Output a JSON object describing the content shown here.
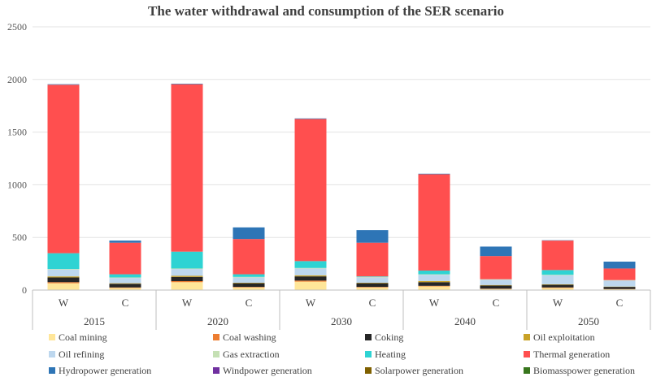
{
  "chart_data": {
    "type": "bar",
    "stacked": true,
    "title": "The water withdrawal and consumption of the SER scenario",
    "xlabel": "",
    "ylabel": "",
    "ylim": [
      0,
      2500
    ],
    "yticks": [
      0,
      500,
      1000,
      1500,
      2000,
      2500
    ],
    "grid": true,
    "legend_position": "bottom",
    "groups": [
      "2015",
      "2020",
      "2030",
      "2040",
      "2050"
    ],
    "categories": [
      "W",
      "C",
      "W",
      "C",
      "W",
      "C",
      "W",
      "C",
      "W",
      "C"
    ],
    "series": [
      {
        "name": "Coal mining",
        "color": "#FFE699",
        "values": [
          65,
          20,
          75,
          25,
          80,
          25,
          35,
          10,
          20,
          8
        ]
      },
      {
        "name": "Coal washing",
        "color": "#ED7D31",
        "values": [
          10,
          5,
          10,
          5,
          10,
          5,
          5,
          3,
          5,
          2
        ]
      },
      {
        "name": "Coking",
        "color": "#262626",
        "values": [
          45,
          35,
          40,
          35,
          40,
          35,
          35,
          30,
          25,
          20
        ]
      },
      {
        "name": "Oil exploitation",
        "color": "#C9A227",
        "values": [
          10,
          5,
          10,
          5,
          10,
          5,
          10,
          5,
          5,
          3
        ]
      },
      {
        "name": "Oil refining",
        "color": "#BDD7EE",
        "values": [
          65,
          50,
          65,
          50,
          65,
          50,
          60,
          50,
          85,
          57
        ]
      },
      {
        "name": "Gas extraction",
        "color": "#C5E0B4",
        "values": [
          5,
          5,
          5,
          5,
          5,
          5,
          5,
          5,
          5,
          5
        ]
      },
      {
        "name": "Heating",
        "color": "#2ED3D3",
        "values": [
          150,
          30,
          160,
          25,
          65,
          5,
          35,
          0,
          45,
          0
        ]
      },
      {
        "name": "Thermal generation",
        "color": "#FF4F4F",
        "values": [
          1600,
          300,
          1590,
          335,
          1350,
          320,
          915,
          220,
          280,
          110
        ]
      },
      {
        "name": "Hydropower generation",
        "color": "#2E75B6",
        "values": [
          5,
          20,
          5,
          110,
          5,
          120,
          5,
          90,
          3,
          65
        ]
      },
      {
        "name": "Windpower generation",
        "color": "#7030A0",
        "values": [
          0,
          0,
          0,
          0,
          0,
          0,
          0,
          0,
          0,
          0
        ]
      },
      {
        "name": "Solarpower generation",
        "color": "#7F6000",
        "values": [
          0,
          0,
          0,
          0,
          0,
          0,
          0,
          0,
          0,
          0
        ]
      },
      {
        "name": "Biomasspower generation",
        "color": "#38761D",
        "values": [
          0,
          0,
          0,
          0,
          0,
          0,
          0,
          0,
          0,
          0
        ]
      }
    ]
  }
}
